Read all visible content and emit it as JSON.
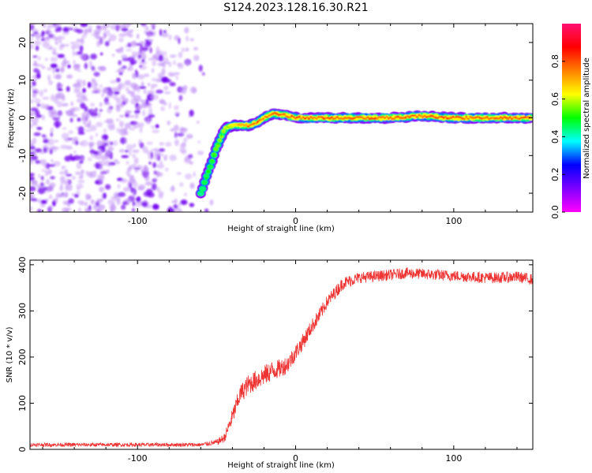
{
  "title": "S124.2023.128.16.30.R21",
  "chart_data": [
    {
      "type": "heatmap",
      "xlabel": "Height of straight line (km)",
      "ylabel": "Frequency (Hz)",
      "xlim": [
        -168,
        150
      ],
      "ylim": [
        -25,
        25
      ],
      "xticks": [
        -100,
        0,
        100
      ],
      "yticks": [
        -20,
        -10,
        0,
        10,
        20
      ],
      "colorbar": {
        "label": "Normalized spectral amplitude",
        "range": [
          0,
          1
        ],
        "ticks": [
          0.0,
          0.2,
          0.4,
          0.6,
          0.8
        ],
        "tick_labels": [
          "0.0",
          "0.2",
          "0.4",
          "0.6",
          "0.8"
        ],
        "colors": [
          "#ff00ff",
          "#7f00ff",
          "#0000ff",
          "#00ffff",
          "#00ff00",
          "#ffff00",
          "#ff7f00",
          "#ff0000",
          "#ff1070"
        ]
      },
      "noise_region": {
        "x": [
          -168,
          -52
        ],
        "y": [
          -25,
          25
        ],
        "amplitude": [
          0.05,
          0.3
        ]
      },
      "ridge": {
        "x": [
          -60,
          -55,
          -50,
          -45,
          -40,
          -35,
          -30,
          -25,
          -20,
          -15,
          -10,
          -5,
          0,
          20,
          40,
          60,
          80,
          100,
          120,
          150
        ],
        "y": [
          -20,
          -14,
          -8,
          -3,
          -2,
          -2,
          -2,
          -1.5,
          0,
          1,
          1,
          0.5,
          0,
          0,
          0,
          0,
          0.5,
          0,
          0,
          0
        ],
        "amplitude": [
          0.45,
          0.5,
          0.55,
          0.6,
          0.65,
          0.75,
          0.8,
          0.85,
          0.9,
          0.95,
          0.95,
          0.95,
          0.95,
          0.95,
          0.95,
          0.95,
          0.95,
          0.95,
          0.95,
          0.95
        ]
      }
    },
    {
      "type": "line",
      "xlabel": "Height of straight line (km)",
      "ylabel": "SNR (10 * v/v)",
      "xlim": [
        -168,
        150
      ],
      "ylim": [
        0,
        410
      ],
      "xticks": [
        -100,
        0,
        100
      ],
      "yticks": [
        0,
        100,
        200,
        300,
        400
      ],
      "color": "#ee3333",
      "series": [
        {
          "x": [
            -168,
            -100,
            -60,
            -50,
            -45,
            -40,
            -35,
            -30,
            -25,
            -20,
            -15,
            -10,
            -5,
            0,
            5,
            10,
            15,
            20,
            25,
            30,
            40,
            50,
            60,
            70,
            80,
            90,
            100,
            110,
            120,
            130,
            140,
            150
          ],
          "values": [
            10,
            10,
            10,
            15,
            25,
            70,
            120,
            140,
            150,
            160,
            170,
            175,
            185,
            210,
            235,
            265,
            290,
            320,
            340,
            360,
            372,
            375,
            378,
            382,
            380,
            378,
            376,
            374,
            372,
            372,
            374,
            368
          ],
          "noise": [
            4,
            4,
            4,
            6,
            10,
            18,
            20,
            22,
            22,
            22,
            22,
            20,
            20,
            18,
            18,
            16,
            16,
            14,
            14,
            14,
            12,
            12,
            12,
            12,
            12,
            12,
            12,
            12,
            12,
            12,
            12,
            12
          ]
        }
      ]
    }
  ]
}
